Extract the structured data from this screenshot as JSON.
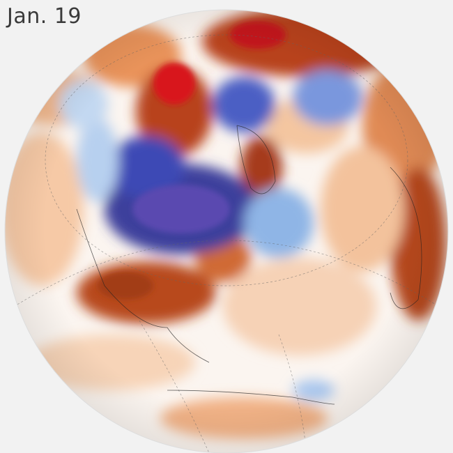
{
  "header": {
    "date": "Jan. 19"
  }
}
